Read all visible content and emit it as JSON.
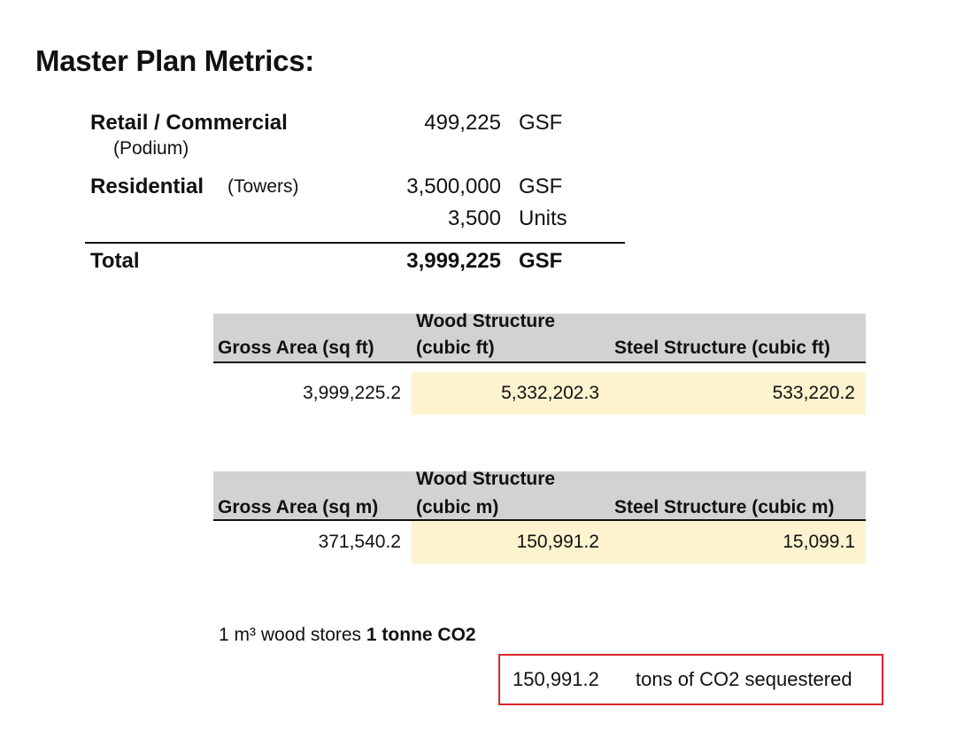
{
  "title": "Master Plan Metrics:",
  "metrics": {
    "retail": {
      "label": "Retail / Commercial",
      "sub": "(Podium)",
      "value": "499,225",
      "unit": "GSF"
    },
    "residential": {
      "label": "Residential",
      "sub": "(Towers)",
      "value": "3,500,000",
      "unit": "GSF",
      "value2": "3,500",
      "unit2": "Units"
    },
    "total": {
      "label": "Total",
      "value": "3,999,225",
      "unit": "GSF"
    }
  },
  "table_imperial": {
    "headers": {
      "gross": "Gross Area (sq ft)",
      "wood_line1": "Wood Structure",
      "wood_line2": "(cubic ft)",
      "steel": "Steel Structure (cubic ft)"
    },
    "values": {
      "gross": "3,999,225.2",
      "wood": "5,332,202.3",
      "steel": "533,220.2"
    }
  },
  "table_metric": {
    "headers": {
      "gross": "Gross Area (sq m)",
      "wood_line1": "Wood Structure",
      "wood_line2": "(cubic m)",
      "steel": "Steel Structure (cubic m)"
    },
    "values": {
      "gross": "371,540.2",
      "wood": "150,991.2",
      "steel": "15,099.1"
    }
  },
  "note": {
    "prefix": "1 m³ wood stores ",
    "bold": "1 tonne CO2"
  },
  "sequestration": {
    "value": "150,991.2",
    "label": "tons of CO2 sequestered"
  },
  "colors": {
    "header_bg": "#d2d1d3",
    "highlight_bg": "#fdf3cf",
    "box_border": "#d9262c"
  }
}
